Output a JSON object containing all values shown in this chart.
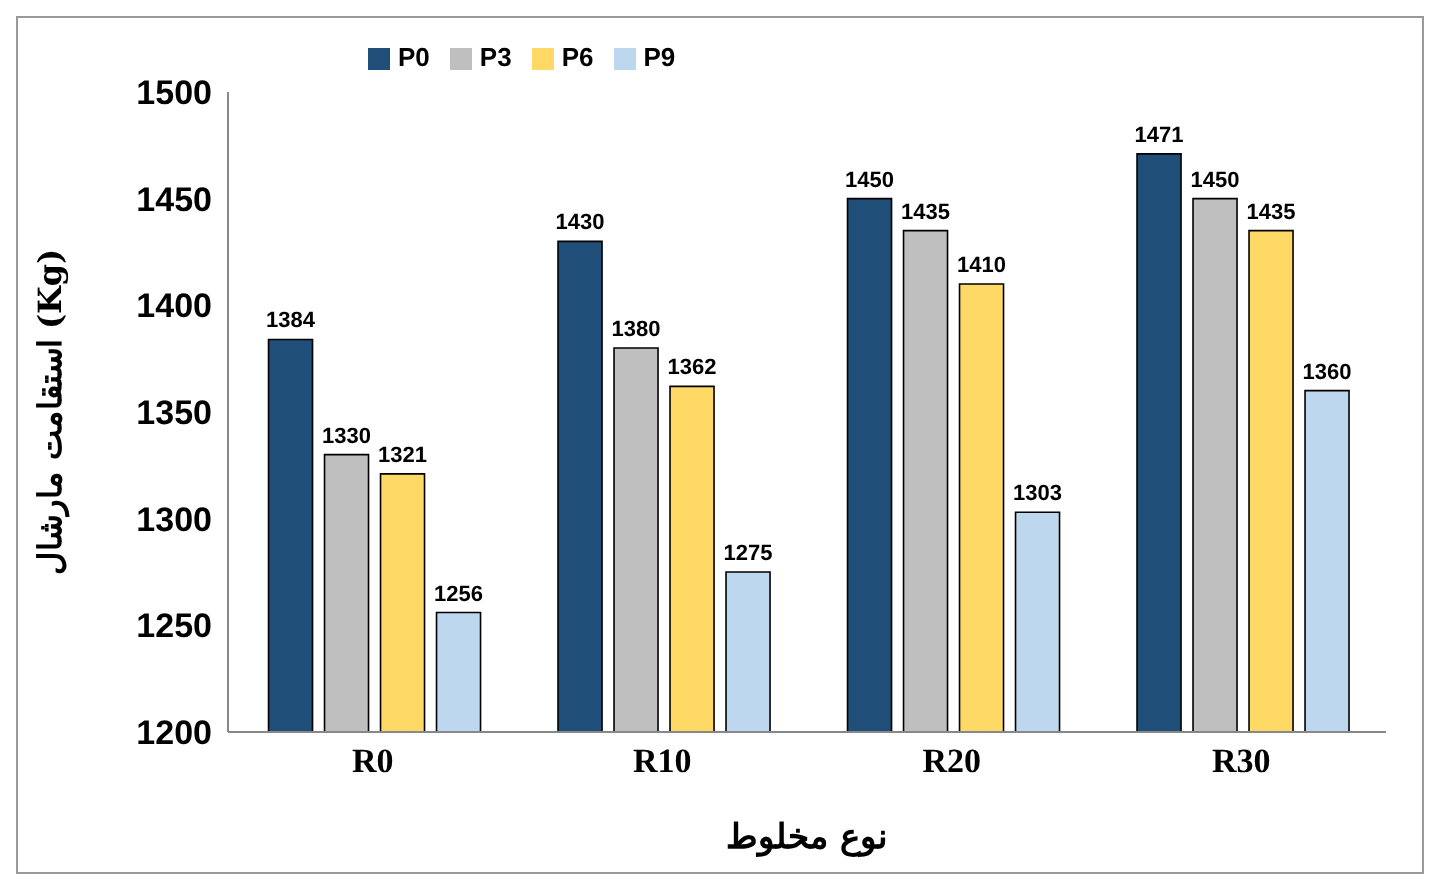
{
  "chart_data": {
    "type": "bar",
    "categories": [
      "R0",
      "R10",
      "R20",
      "R30"
    ],
    "series": [
      {
        "name": "P0",
        "color": "#1f4e79",
        "values": [
          1384,
          1430,
          1450,
          1471
        ]
      },
      {
        "name": "P3",
        "color": "#bfbfbf",
        "values": [
          1330,
          1380,
          1435,
          1450
        ]
      },
      {
        "name": "P6",
        "color": "#ffd966",
        "values": [
          1321,
          1362,
          1410,
          1435
        ]
      },
      {
        "name": "P9",
        "color": "#bdd7ee",
        "values": [
          1256,
          1275,
          1303,
          1360
        ]
      }
    ],
    "xlabel": "نوع مخلوط",
    "ylabel": "استقامت مارشال (Kg)",
    "ylim": [
      1200,
      1500
    ],
    "yticks": [
      1200,
      1250,
      1300,
      1350,
      1400,
      1450,
      1500
    ],
    "grid": false,
    "legend": "top left",
    "data_labels": true
  }
}
